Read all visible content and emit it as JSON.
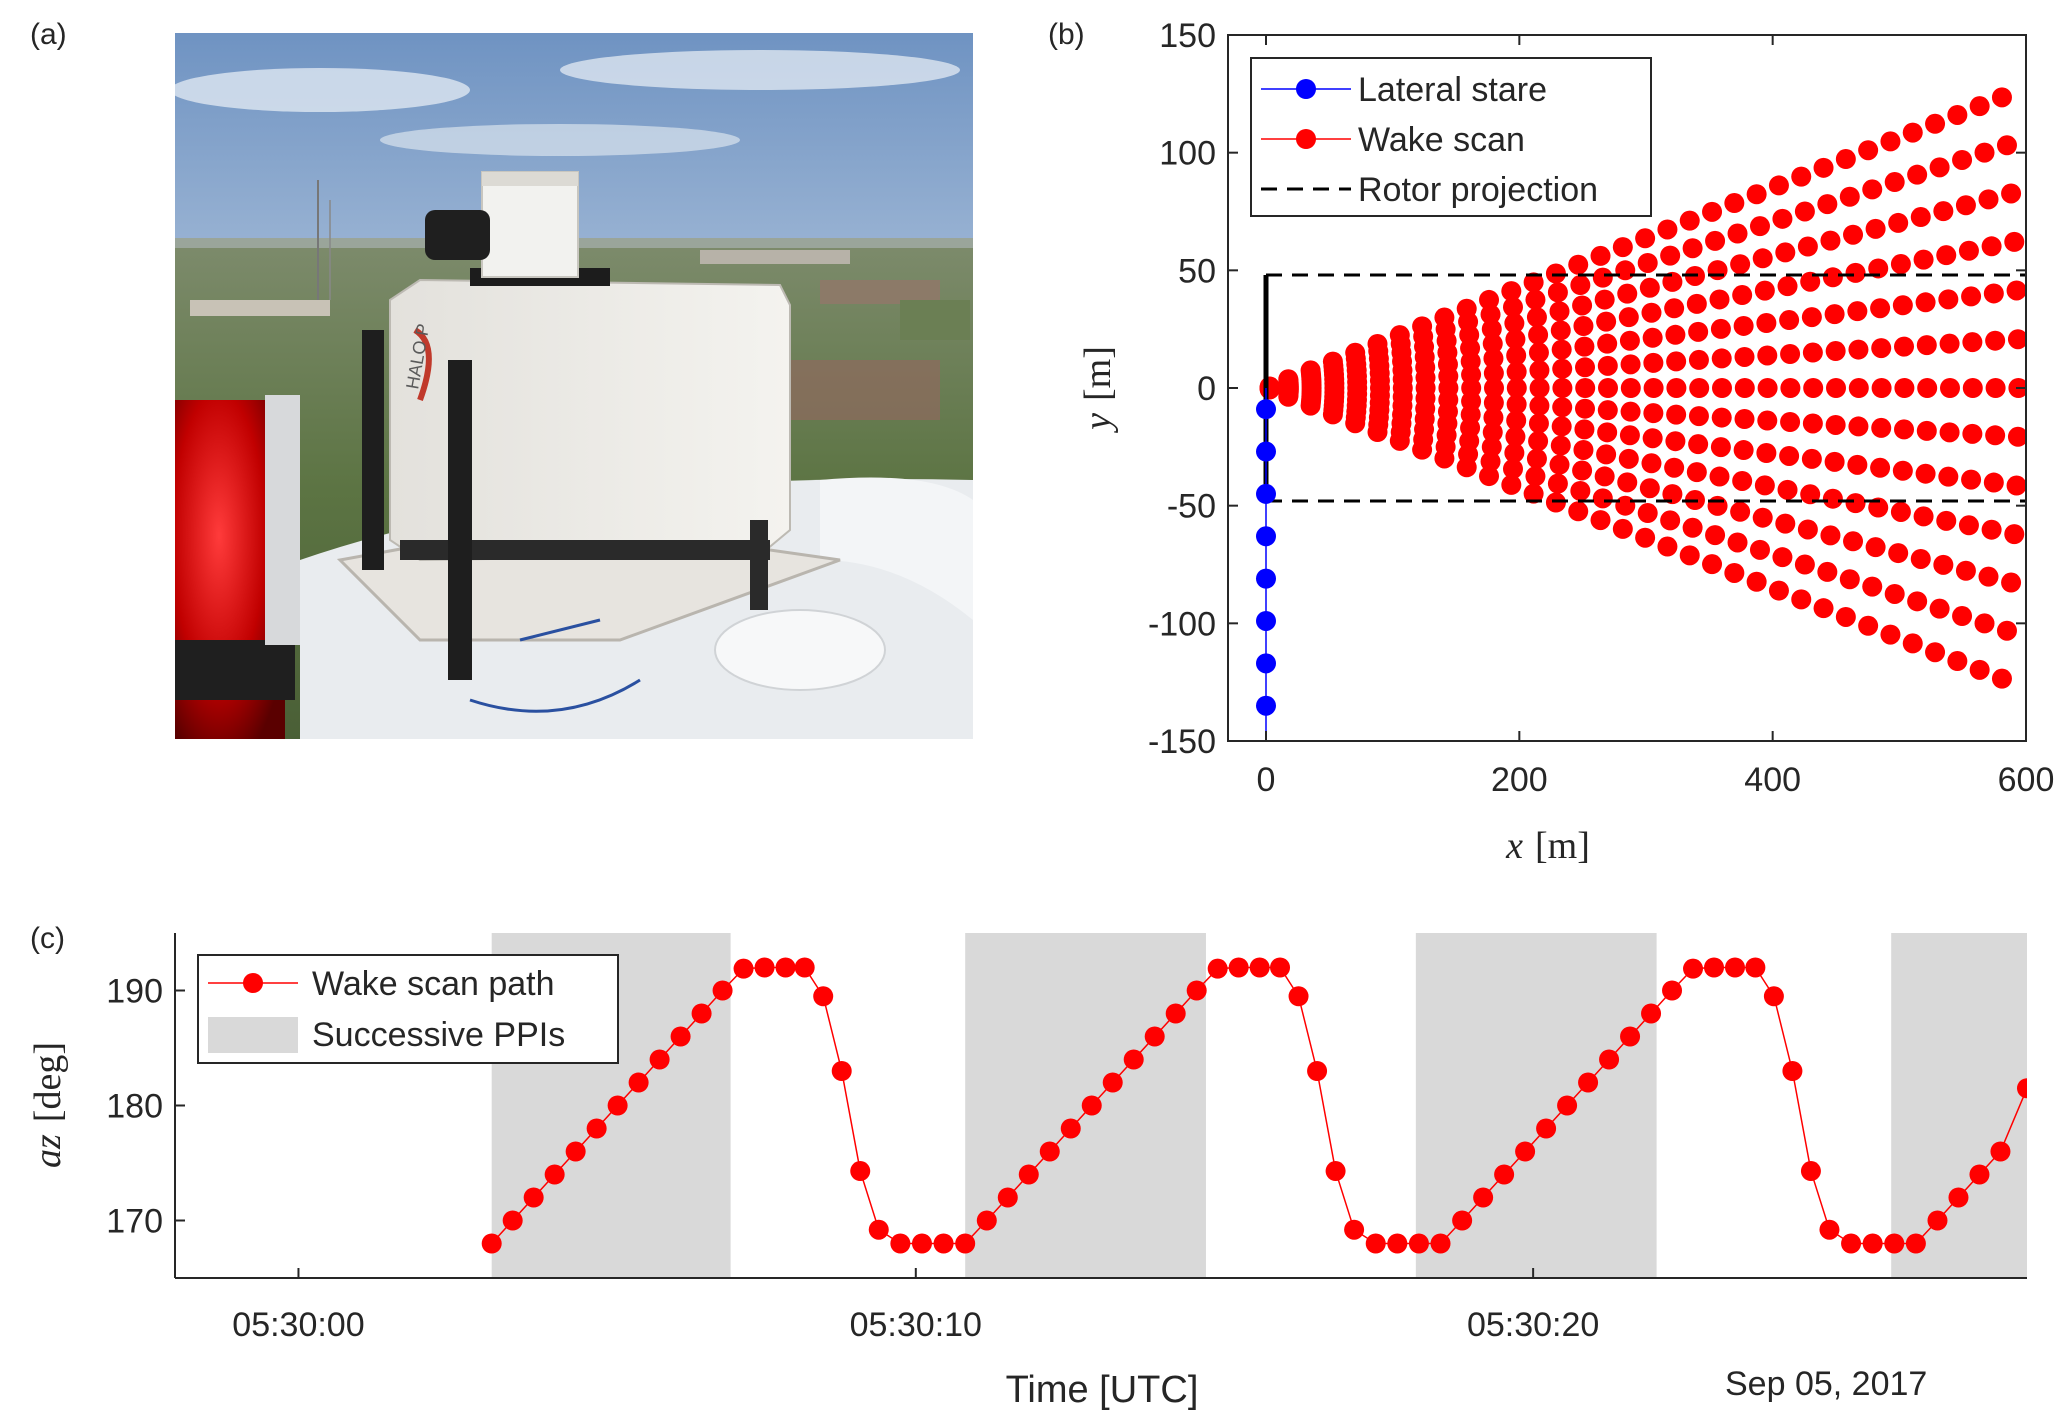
{
  "panel_labels": {
    "a": "(a)",
    "b": "(b)",
    "c": "(c)"
  },
  "photo": {
    "caption_icon": "lidar-photo",
    "logo_text": "HALO P"
  },
  "chart_data": [
    {
      "id": "b",
      "type": "scatter",
      "xlabel_var": "x",
      "xlabel_unit": "[m]",
      "ylabel_var": "y",
      "ylabel_unit": "[m]",
      "xlim": [
        -30,
        600
      ],
      "ylim": [
        -150,
        150
      ],
      "xticks": [
        0,
        200,
        400,
        600
      ],
      "yticks": [
        -150,
        -100,
        -50,
        0,
        50,
        100,
        150
      ],
      "legend_position": "top-left",
      "grid": false,
      "series": [
        {
          "name": "Lateral stare",
          "color": "#0000ff",
          "marker": "circle",
          "line": "solid-thin",
          "x": [
            0,
            0,
            0,
            0,
            0,
            0,
            0,
            0
          ],
          "y": [
            -9,
            -27,
            -45,
            -63,
            -81,
            -99,
            -117,
            -135
          ]
        },
        {
          "name": "Wake scan",
          "color": "#ff0000",
          "marker": "circle",
          "line": "none",
          "beam_azimuths_deg": [
            -12,
            -10,
            -8,
            -6,
            -4,
            -2,
            0,
            2,
            4,
            6,
            8,
            10,
            12
          ],
          "range_gates_m": [
            3,
            18,
            36,
            54,
            72,
            90,
            108,
            126,
            144,
            162,
            180,
            198,
            216,
            234,
            252,
            270,
            288,
            306,
            324,
            342,
            360,
            378,
            396,
            414,
            432,
            450,
            468,
            486,
            504,
            522,
            540,
            558,
            576,
            594
          ]
        },
        {
          "name": "Rotor projection",
          "color": "#000000",
          "line": "dashed",
          "x": [
            0,
            600
          ],
          "y_upper": 48,
          "y_lower": -48
        }
      ],
      "rotor_line": {
        "x": 0,
        "y": [
          -48,
          48
        ],
        "color": "#000000"
      }
    },
    {
      "id": "c",
      "type": "line",
      "ylabel_var": "az",
      "ylabel_unit": "[deg]",
      "xlabel": "Time [UTC]",
      "date_label": "Sep 05, 2017",
      "xlim_s": [
        -2,
        28
      ],
      "ylim": [
        165,
        195
      ],
      "xticks": [
        "05:30:00",
        "05:30:10",
        "05:30:20"
      ],
      "xtick_values_s": [
        0,
        10,
        20
      ],
      "yticks": [
        170,
        180,
        190
      ],
      "legend_position": "top-left",
      "grid": false,
      "series": [
        {
          "name": "Wake scan path",
          "color": "#ff0000",
          "marker": "circle",
          "t_s": [
            3.13,
            3.47,
            3.81,
            4.15,
            4.49,
            4.83,
            5.17,
            5.51,
            5.85,
            6.19,
            6.53,
            6.87,
            7.21,
            7.55,
            7.89,
            8.2,
            8.5,
            8.8,
            9.1,
            9.4,
            9.75,
            10.1,
            10.45,
            10.8,
            11.15,
            11.49,
            11.83,
            12.17,
            12.51,
            12.85,
            13.19,
            13.53,
            13.87,
            14.21,
            14.55,
            14.89,
            15.23,
            15.57,
            15.9,
            16.2,
            16.5,
            16.8,
            17.1,
            17.45,
            17.8,
            18.15,
            18.5,
            18.85,
            19.19,
            19.53,
            19.87,
            20.21,
            20.55,
            20.89,
            21.23,
            21.57,
            21.91,
            22.25,
            22.59,
            22.93,
            23.27,
            23.6,
            23.9,
            24.2,
            24.5,
            24.8,
            25.15,
            25.5,
            25.85,
            26.2,
            26.55,
            26.89,
            27.23,
            27.57,
            28.0
          ],
          "az_deg": [
            168,
            170,
            172,
            174,
            176,
            178,
            180,
            182,
            184,
            186,
            188,
            190,
            191.9,
            192,
            192,
            192,
            189.5,
            183,
            174.3,
            169.2,
            168,
            168,
            168,
            168,
            170,
            172,
            174,
            176,
            178,
            180,
            182,
            184,
            186,
            188,
            190,
            191.9,
            192,
            192,
            192,
            189.5,
            183,
            174.3,
            169.2,
            168,
            168,
            168,
            168,
            170,
            172,
            174,
            176,
            178,
            180,
            182,
            184,
            186,
            188,
            190,
            191.9,
            192,
            192,
            192,
            189.5,
            183,
            174.3,
            169.2,
            168,
            168,
            168,
            168,
            170,
            172,
            174,
            176,
            181.5
          ]
        },
        {
          "name": "Successive PPIs",
          "color": "#d9d9d9",
          "type": "shaded-intervals",
          "intervals_s": [
            [
              3.13,
              7.0
            ],
            [
              10.8,
              14.7
            ],
            [
              18.1,
              22.0
            ],
            [
              25.8,
              28.0
            ]
          ]
        }
      ]
    }
  ]
}
